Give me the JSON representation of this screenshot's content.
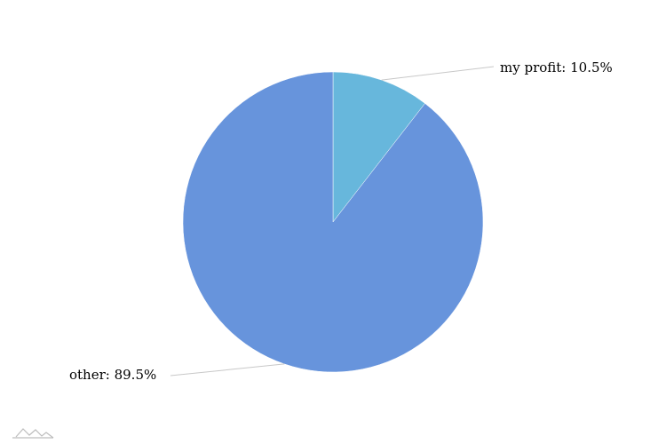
{
  "chart_data": {
    "type": "pie",
    "title": "",
    "slices": [
      {
        "label": "my profit",
        "value": 10.5,
        "display": "my profit: 10.5%",
        "color": "#67b7dc"
      },
      {
        "label": "other",
        "value": 89.5,
        "display": "other: 89.5%",
        "color": "#6794dc"
      }
    ],
    "start_angle": "top",
    "direction": "clockwise",
    "legend": "none"
  },
  "credit": {
    "icon": "chart-library-logo-icon"
  }
}
